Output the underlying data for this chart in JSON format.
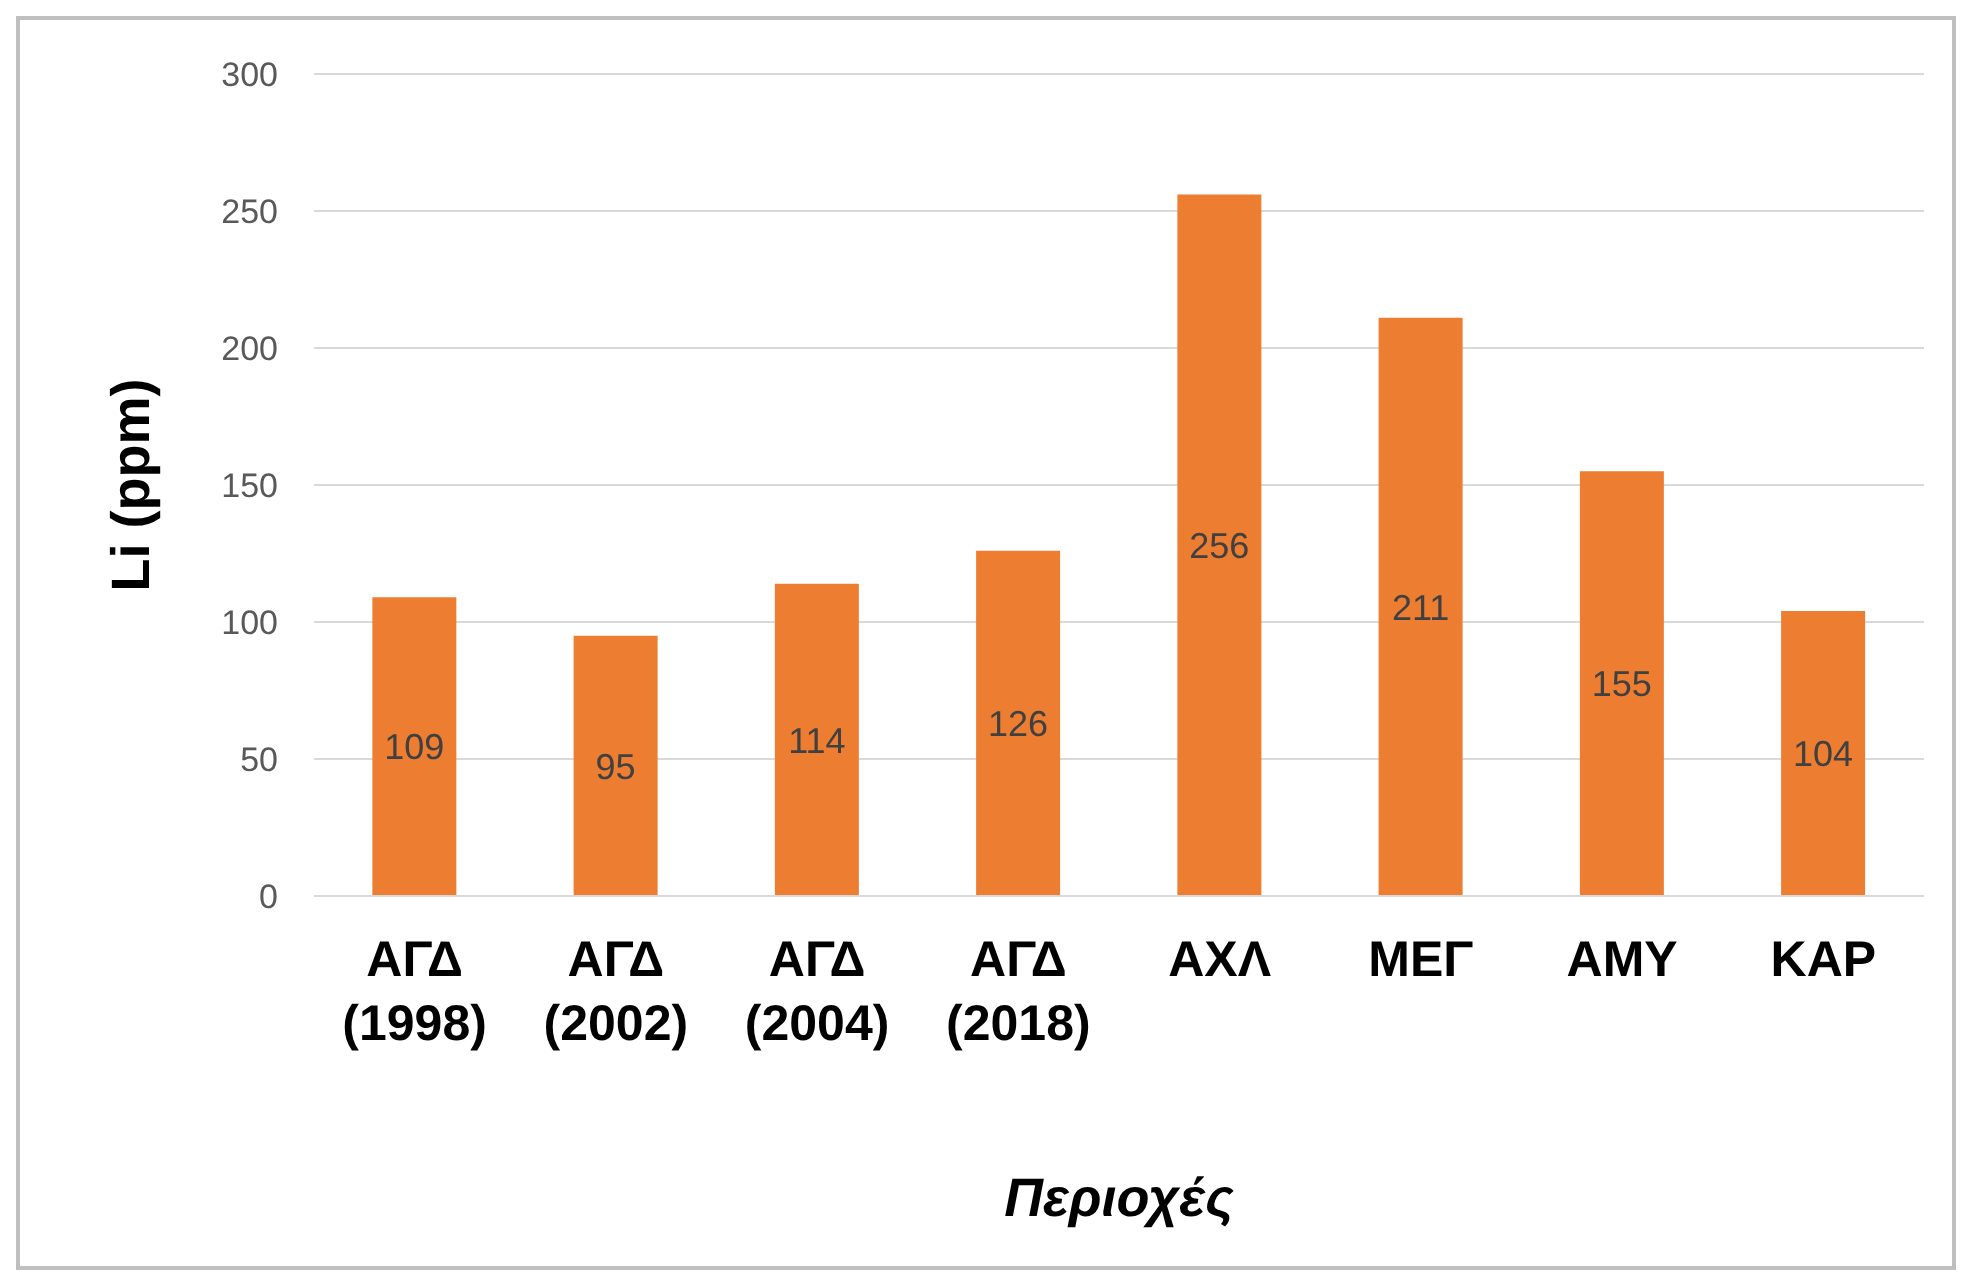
{
  "chart_data": {
    "type": "bar",
    "xlabel": "Περιοχές",
    "ylabel": "Li (ppm)",
    "categories": [
      "ΑΓΔ (1998)",
      "ΑΓΔ (2002)",
      "ΑΓΔ (2004)",
      "ΑΓΔ (2018)",
      "ΑΧΛ",
      "ΜΕΓ",
      "ΑΜΥ",
      "ΚΑΡ"
    ],
    "values": [
      109,
      95,
      114,
      126,
      256,
      211,
      155,
      104
    ],
    "color": "#ed7d31",
    "ylim": [
      0,
      300
    ],
    "yticks": [
      0,
      50,
      100,
      150,
      200,
      250,
      300
    ],
    "grid": "y",
    "data_labels": true
  }
}
